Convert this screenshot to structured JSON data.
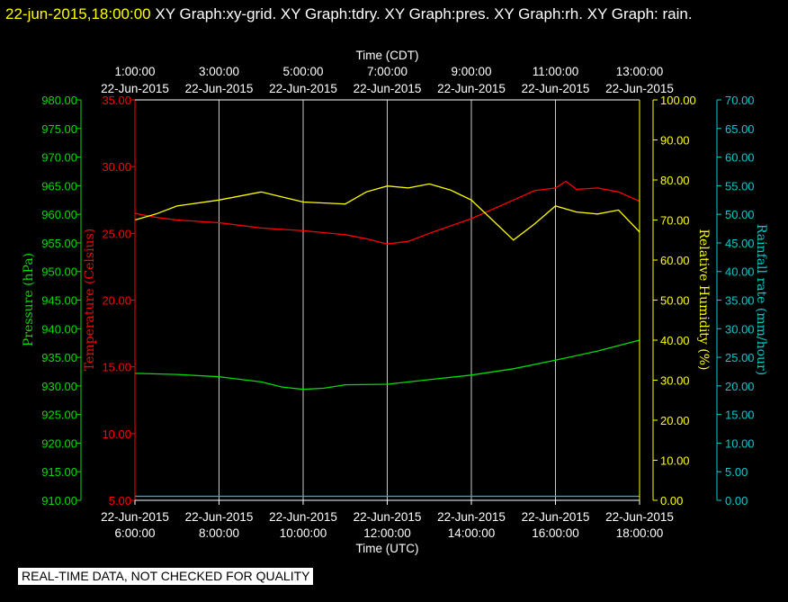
{
  "header": {
    "timestamp": "22-jun-2015,18:00:00",
    "title": "XY Graph:xy-grid.  XY Graph:tdry.  XY Graph:pres.  XY Graph:rh.  XY Graph: rain."
  },
  "footer": {
    "notice": "REAL-TIME DATA, NOT CHECKED FOR QUALITY"
  },
  "colors": {
    "pressure": "#00dd00",
    "temperature": "#ff0000",
    "humidity": "#ffff00",
    "rain": "#00cccc",
    "axis": "#ffffff",
    "grid": "#c8c8c8"
  },
  "chart_data": {
    "type": "line",
    "grid": true,
    "x_bottom": {
      "label": "Time (UTC)",
      "ticks": [
        {
          "date": "22-Jun-2015",
          "time": "6:00:00"
        },
        {
          "date": "22-Jun-2015",
          "time": "8:00:00"
        },
        {
          "date": "22-Jun-2015",
          "time": "10:00:00"
        },
        {
          "date": "22-Jun-2015",
          "time": "12:00:00"
        },
        {
          "date": "22-Jun-2015",
          "time": "14:00:00"
        },
        {
          "date": "22-Jun-2015",
          "time": "16:00:00"
        },
        {
          "date": "22-Jun-2015",
          "time": "18:00:00"
        }
      ]
    },
    "x_top": {
      "label": "Time (CDT)",
      "ticks": [
        {
          "date": "22-Jun-2015",
          "time": "1:00:00"
        },
        {
          "date": "22-Jun-2015",
          "time": "3:00:00"
        },
        {
          "date": "22-Jun-2015",
          "time": "5:00:00"
        },
        {
          "date": "22-Jun-2015",
          "time": "7:00:00"
        },
        {
          "date": "22-Jun-2015",
          "time": "9:00:00"
        },
        {
          "date": "22-Jun-2015",
          "time": "11:00:00"
        },
        {
          "date": "22-Jun-2015",
          "time": "13:00:00"
        }
      ]
    },
    "axes": {
      "pressure": {
        "label": "Pressure (hPa)",
        "ylim": [
          910,
          980
        ],
        "ticks": [
          "910.00",
          "915.00",
          "920.00",
          "925.00",
          "930.00",
          "935.00",
          "940.00",
          "945.00",
          "950.00",
          "955.00",
          "960.00",
          "965.00",
          "970.00",
          "975.00",
          "980.00"
        ]
      },
      "temperature": {
        "label": "Temperature (Celsius)",
        "ylim": [
          5,
          35
        ],
        "ticks": [
          "5.00",
          "10.00",
          "15.00",
          "20.00",
          "25.00",
          "30.00",
          "35.00"
        ]
      },
      "humidity": {
        "label": "Relative Humidity (%)",
        "ylim": [
          0,
          100
        ],
        "ticks": [
          "0.00",
          "10.00",
          "20.00",
          "30.00",
          "40.00",
          "50.00",
          "60.00",
          "70.00",
          "80.00",
          "90.00",
          "100.00"
        ]
      },
      "rain": {
        "label": "Rainfall rate (mm/hour)",
        "ylim": [
          0,
          70
        ],
        "ticks": [
          "0.00",
          "5.00",
          "10.00",
          "15.00",
          "20.00",
          "25.00",
          "30.00",
          "35.00",
          "40.00",
          "45.00",
          "50.00",
          "55.00",
          "60.00",
          "65.00",
          "70.00"
        ]
      }
    },
    "series": [
      {
        "axis": "pressure",
        "x": [
          "06:00",
          "07:00",
          "08:00",
          "09:00",
          "09:30",
          "10:00",
          "10:30",
          "11:00",
          "12:00",
          "13:00",
          "14:00",
          "15:00",
          "16:00",
          "17:00",
          "18:00"
        ],
        "values": [
          932.2,
          932.0,
          931.6,
          930.7,
          929.8,
          929.4,
          929.6,
          930.2,
          930.3,
          931.1,
          931.9,
          933.0,
          934.5,
          936.1,
          938.0
        ]
      },
      {
        "axis": "temperature",
        "x": [
          "06:00",
          "06:30",
          "07:00",
          "08:00",
          "09:00",
          "10:00",
          "11:00",
          "11:30",
          "12:00",
          "12:30",
          "13:00",
          "14:00",
          "15:00",
          "15:30",
          "16:00",
          "16:15",
          "16:30",
          "17:00",
          "17:30",
          "18:00"
        ],
        "values": [
          26.5,
          26.2,
          26.0,
          25.8,
          25.4,
          25.2,
          24.9,
          24.6,
          24.2,
          24.4,
          25.0,
          26.1,
          27.5,
          28.2,
          28.4,
          28.9,
          28.3,
          28.4,
          28.1,
          27.4
        ]
      },
      {
        "axis": "humidity",
        "x": [
          "06:00",
          "06:30",
          "07:00",
          "08:00",
          "09:00",
          "10:00",
          "11:00",
          "11:30",
          "12:00",
          "12:30",
          "13:00",
          "13:30",
          "14:00",
          "14:30",
          "15:00",
          "15:30",
          "16:00",
          "16:30",
          "17:00",
          "17:30",
          "18:00"
        ],
        "values": [
          70.0,
          71.5,
          73.5,
          75.0,
          77.0,
          74.5,
          74.0,
          77.0,
          78.5,
          78.0,
          79.0,
          77.5,
          75.0,
          70.0,
          65.0,
          69.0,
          73.5,
          72.0,
          71.5,
          72.5,
          67.0
        ]
      },
      {
        "axis": "rain",
        "x": [
          "06:00",
          "18:00"
        ],
        "values": [
          0.7,
          0.7
        ]
      }
    ]
  }
}
